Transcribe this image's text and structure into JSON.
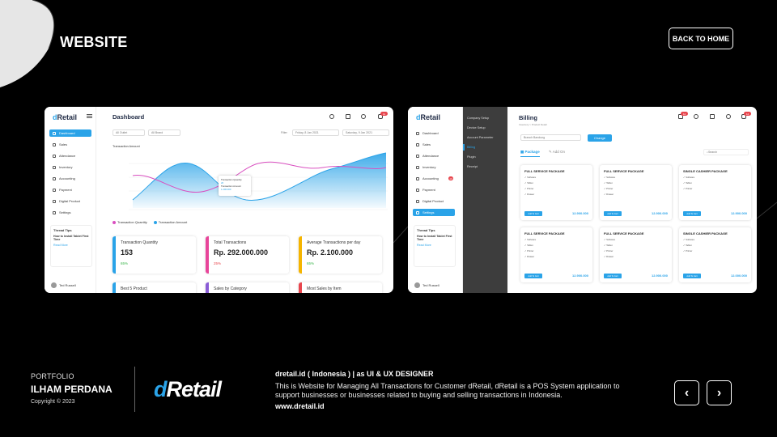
{
  "page": {
    "title": "WEBSITE",
    "back_label": "BACK TO HOME"
  },
  "dashboard_shot": {
    "logo_d": "d",
    "logo_rest": "Retail",
    "title": "Dashboard",
    "nav": [
      "Dashboard",
      "Sales",
      "Attendance",
      "Inventory",
      "Accounting",
      "Payment",
      "Digital Product",
      "Settings"
    ],
    "filter1": "All Outlet",
    "filter2": "All Brand",
    "filter_label": "Filter",
    "date1": "Friday, 8 Jan 2021",
    "date2": "Saturday, 9 Jan 2021",
    "chart_label": "Transaction Amount",
    "legend": [
      "Transaction Quantity",
      "Transaction Amount"
    ],
    "tooltip": {
      "l1": "Transaction Quantity",
      "v1": "20",
      "l2": "Transaction Amount",
      "v2": "1.200.000"
    },
    "tips": {
      "h": "Thread Tips",
      "t": "How to Install Tablet First Time",
      "more": "Read More"
    },
    "user": "Ted Russell",
    "badge": "12",
    "stats": [
      {
        "label": "Transaction Quantity",
        "value": "153",
        "pct": "65%",
        "color": "#2aa3e8",
        "pct_color": "#3bb54a"
      },
      {
        "label": "Total Transactions",
        "value": "Rp. 292.000.000",
        "pct": "25%",
        "color": "#e8459a",
        "pct_color": "#e8454d"
      },
      {
        "label": "Average Transactions per day",
        "value": "Rp. 2.100.000",
        "pct": "65%",
        "color": "#f5b400",
        "pct_color": "#3bb54a"
      }
    ],
    "stats2": [
      {
        "label": "Best 5 Product",
        "color": "#2aa3e8"
      },
      {
        "label": "Sales by Category",
        "color": "#8a5cd6"
      },
      {
        "label": "Most Sales by Item",
        "color": "#e8454d"
      }
    ]
  },
  "billing_shot": {
    "logo_d": "d",
    "logo_rest": "Retail",
    "title": "Billing",
    "breadcrumb": "Inventory  >  Product Detail",
    "nav": [
      "Dashboard",
      "Sales",
      "Attendance",
      "Inventory",
      "Accounting",
      "Payment",
      "Digital Product",
      "Settings"
    ],
    "subnav": [
      "Company Setup",
      "Device Setup",
      "Account Parameter",
      "Billing",
      "Plugin",
      "Receipt"
    ],
    "branch": "Branch Bandung",
    "change": "Change",
    "tab_package": "Package",
    "tab_addon": "Add On",
    "search": "Search",
    "user": "Ted Russell",
    "badge": "12",
    "nav_badge": "10",
    "packages": [
      {
        "name": "FULL SERVICE PACKAGE",
        "price": "12.900.000"
      },
      {
        "name": "FULL SERVICE PACKAGE",
        "price": "12.900.000"
      },
      {
        "name": "SINGLE CASHIER PACKAGE",
        "price": "12.900.000"
      },
      {
        "name": "FULL SERVICE PACKAGE",
        "price": "12.900.000"
      },
      {
        "name": "FULL SERVICE PACKAGE",
        "price": "12.900.000"
      },
      {
        "name": "SINGLE CASHIER PACKAGE",
        "price": "12.000.000"
      }
    ],
    "pkg_btn": "Add To Cart",
    "pkg_unit": "/ year"
  },
  "footer": {
    "portfolio": "PORTFOLIO",
    "name": "ILHAM PERDANA",
    "copyright": "Copyright © 2023",
    "logo_d": "d",
    "logo_rest": "Retail",
    "headline": "dretail.id ( Indonesia ) | as UI & UX DESIGNER",
    "description": "This is Website for Managing All Transactions for Customer dRetail, dRetail is a POS System application to support businesses or businesses related to buying and selling transactions in Indonesia.",
    "url": "www.dretail.id"
  },
  "icons": {
    "prev": "chevron-left-icon",
    "next": "chevron-right-icon"
  }
}
